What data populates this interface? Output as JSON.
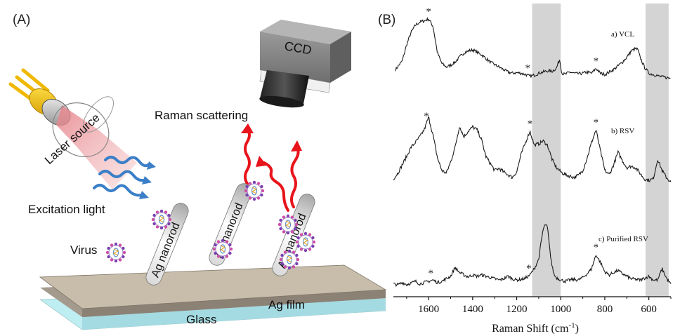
{
  "panel_a": {
    "label": "(A)",
    "laser_label": "Laser source",
    "excitation_label": "Excitation light",
    "raman_label": "Raman scattering",
    "ccd_label": "CCD",
    "virus_label": "Virus",
    "nanorod_label": "Ag nanorod",
    "film_label": "Ag film",
    "glass_label": "Glass",
    "colors": {
      "scatter_arrow": "#e8141b",
      "excitation_arrow": "#3a7fc8",
      "glass": "#bfeef2",
      "ag_film": "#a59a8e",
      "substrate_top": "#c8bdab"
    }
  },
  "panel_b": {
    "label": "(B)",
    "xlabel": "Raman Shift (cm",
    "xlabel_sup": "-1",
    "xlabel_close": ")",
    "xticks": [
      "1600",
      "1400",
      "1200",
      "1000",
      "800",
      "600"
    ],
    "peak_marker": "*",
    "spectra": [
      {
        "label": "a) VCL"
      },
      {
        "label": "b) RSV"
      },
      {
        "label": "c) Purified RSV"
      }
    ]
  },
  "chart_data": {
    "type": "line",
    "xlabel": "Raman Shift (cm-1)",
    "xlim": [
      1760,
      500
    ],
    "x_reversed": true,
    "highlight_bands": [
      [
        1130,
        1000
      ],
      [
        615,
        510
      ]
    ],
    "series": [
      {
        "name": "a) VCL",
        "x": [
          1750,
          1720,
          1700,
          1680,
          1660,
          1640,
          1620,
          1600,
          1580,
          1560,
          1540,
          1520,
          1500,
          1480,
          1460,
          1440,
          1420,
          1400,
          1380,
          1360,
          1340,
          1320,
          1300,
          1280,
          1260,
          1240,
          1220,
          1200,
          1180,
          1160,
          1140,
          1120,
          1100,
          1080,
          1060,
          1040,
          1020,
          1005,
          995,
          980,
          960,
          940,
          920,
          900,
          880,
          860,
          840,
          820,
          800,
          780,
          760,
          740,
          720,
          700,
          680,
          660,
          650,
          640,
          620,
          600,
          580,
          560,
          540,
          520,
          500
        ],
        "y": [
          0.18,
          0.32,
          0.58,
          0.78,
          0.9,
          0.95,
          0.97,
          1.0,
          0.88,
          0.45,
          0.28,
          0.22,
          0.25,
          0.3,
          0.38,
          0.45,
          0.48,
          0.5,
          0.46,
          0.42,
          0.36,
          0.3,
          0.26,
          0.22,
          0.18,
          0.14,
          0.12,
          0.13,
          0.12,
          0.1,
          0.07,
          0.09,
          0.12,
          0.14,
          0.16,
          0.15,
          0.2,
          0.35,
          0.12,
          0.1,
          0.14,
          0.12,
          0.11,
          0.12,
          0.14,
          0.12,
          0.2,
          0.12,
          0.1,
          0.14,
          0.18,
          0.24,
          0.3,
          0.38,
          0.48,
          0.52,
          0.5,
          0.38,
          0.22,
          0.12,
          0.1,
          0.08,
          0.06,
          0.05,
          0.04
        ]
      },
      {
        "name": "b) RSV",
        "x": [
          1760,
          1740,
          1720,
          1700,
          1680,
          1660,
          1640,
          1620,
          1600,
          1580,
          1560,
          1540,
          1520,
          1500,
          1480,
          1460,
          1440,
          1420,
          1400,
          1380,
          1360,
          1340,
          1320,
          1300,
          1280,
          1260,
          1240,
          1220,
          1200,
          1180,
          1160,
          1140,
          1120,
          1100,
          1080,
          1060,
          1040,
          1020,
          1000,
          980,
          960,
          940,
          920,
          900,
          880,
          860,
          840,
          820,
          800,
          780,
          760,
          740,
          720,
          700,
          680,
          660,
          640,
          620,
          600,
          580,
          560,
          540,
          520,
          500
        ],
        "y": [
          0.1,
          0.18,
          0.3,
          0.42,
          0.55,
          0.62,
          0.7,
          0.8,
          0.98,
          0.72,
          0.4,
          0.22,
          0.18,
          0.34,
          0.55,
          0.85,
          0.7,
          0.78,
          0.84,
          0.8,
          0.66,
          0.42,
          0.32,
          0.22,
          0.25,
          0.2,
          0.16,
          0.12,
          0.2,
          0.45,
          0.62,
          0.78,
          0.58,
          0.6,
          0.64,
          0.58,
          0.38,
          0.26,
          0.2,
          0.16,
          0.14,
          0.12,
          0.15,
          0.22,
          0.4,
          0.62,
          0.8,
          0.5,
          0.22,
          0.16,
          0.3,
          0.48,
          0.36,
          0.26,
          0.28,
          0.26,
          0.18,
          0.1,
          0.08,
          0.1,
          0.38,
          0.22,
          0.12,
          0.05
        ]
      },
      {
        "name": "c) Purified RSV",
        "x": [
          1760,
          1740,
          1720,
          1700,
          1680,
          1660,
          1640,
          1620,
          1600,
          1580,
          1560,
          1540,
          1520,
          1500,
          1480,
          1460,
          1440,
          1420,
          1400,
          1380,
          1360,
          1340,
          1320,
          1300,
          1280,
          1260,
          1240,
          1220,
          1200,
          1180,
          1160,
          1140,
          1120,
          1100,
          1090,
          1080,
          1070,
          1060,
          1050,
          1040,
          1030,
          1020,
          1000,
          980,
          960,
          940,
          920,
          900,
          880,
          860,
          840,
          820,
          800,
          780,
          760,
          740,
          720,
          700,
          680,
          660,
          640,
          620,
          600,
          580,
          560,
          540,
          520,
          500
        ],
        "y": [
          0.06,
          0.04,
          0.08,
          0.05,
          0.07,
          0.1,
          0.06,
          0.08,
          0.1,
          0.12,
          0.08,
          0.1,
          0.14,
          0.18,
          0.32,
          0.24,
          0.2,
          0.17,
          0.2,
          0.18,
          0.2,
          0.18,
          0.16,
          0.14,
          0.12,
          0.14,
          0.18,
          0.14,
          0.12,
          0.13,
          0.15,
          0.2,
          0.3,
          0.45,
          0.7,
          0.92,
          1.0,
          0.95,
          0.6,
          0.35,
          0.2,
          0.16,
          0.12,
          0.1,
          0.12,
          0.13,
          0.12,
          0.16,
          0.22,
          0.3,
          0.52,
          0.4,
          0.25,
          0.2,
          0.24,
          0.27,
          0.22,
          0.18,
          0.14,
          0.13,
          0.12,
          0.15,
          0.18,
          0.12,
          0.12,
          0.3,
          0.15,
          0.05
        ]
      }
    ],
    "peak_markers": [
      {
        "series": "a) VCL",
        "x": [
          1600,
          1150,
          840
        ]
      },
      {
        "series": "b) RSV",
        "x": [
          1610,
          1140,
          840
        ]
      },
      {
        "series": "c) Purified RSV",
        "x": [
          1590,
          1145,
          840
        ]
      }
    ]
  }
}
